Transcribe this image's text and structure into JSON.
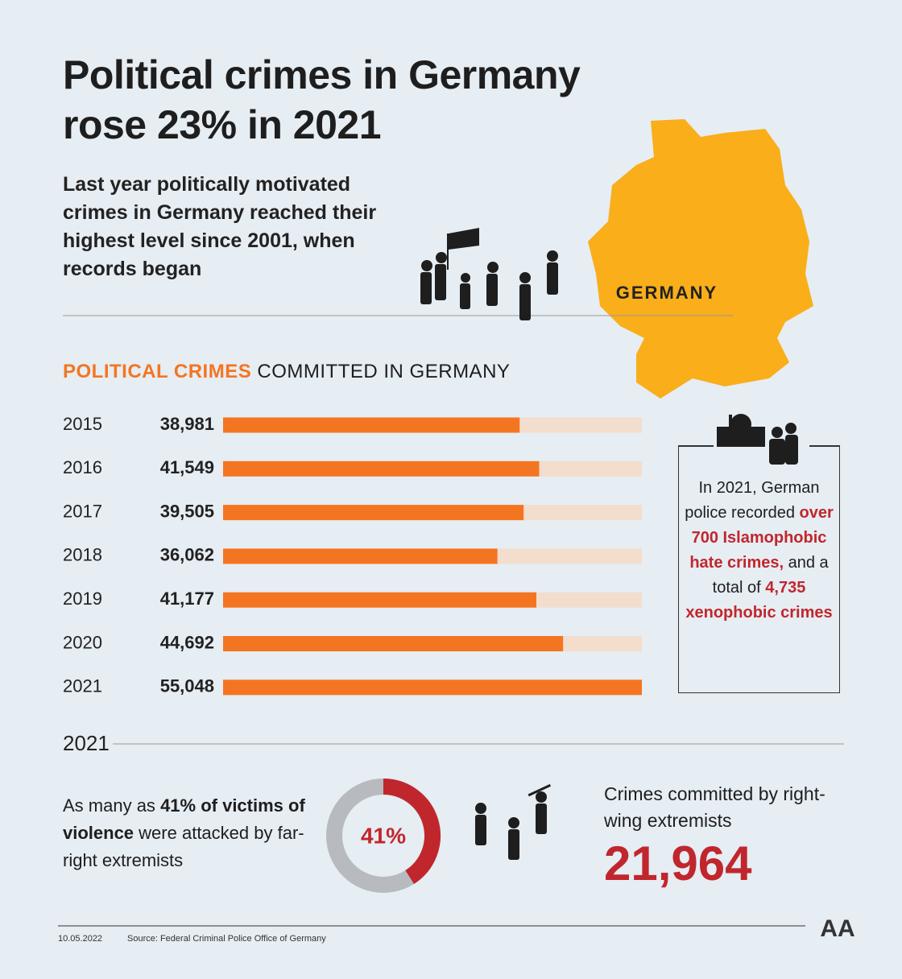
{
  "title": "Political crimes in Germany rose 23% in 2021",
  "subtitle": "Last year politically motivated crimes in Germany reached their highest level since 2001, when records began",
  "map_label": "GERMANY",
  "chart_data": [
    {
      "type": "bar",
      "title_highlight": "POLITICAL CRIMES",
      "title": "COMMITTED IN GERMANY",
      "categories": [
        "2015",
        "2016",
        "2017",
        "2018",
        "2019",
        "2020",
        "2021"
      ],
      "values": [
        38981,
        41549,
        39505,
        36062,
        41177,
        44692,
        55048
      ],
      "value_labels": [
        "38,981",
        "41,549",
        "39,505",
        "36,062",
        "41,177",
        "44,692",
        "55,048"
      ],
      "color": "#f47521",
      "track_color": "#f3ddcd",
      "xlim": [
        0,
        55048
      ]
    },
    {
      "type": "donut",
      "values": [
        41
      ],
      "value_labels": [
        "41%"
      ],
      "color": "#c0272d",
      "rest_color": "#b7babf"
    }
  ],
  "note": {
    "lead": "In 2021, German police recorded",
    "highlight1": "over 700 Islamophobic hate crimes,",
    "mid": "and a total of",
    "highlight2": "4,735 xenophobic crimes"
  },
  "year_heading": "2021",
  "victims": {
    "lead": "As many as",
    "highlight": "41% of victims of violence",
    "tail": "were attacked by far-right extremists"
  },
  "right_wing": {
    "label": "Crimes committed by right-wing extremists",
    "value": "21,964"
  },
  "footer": {
    "date": "10.05.2022",
    "source": "Source: Federal Criminal Police Office of Germany"
  }
}
